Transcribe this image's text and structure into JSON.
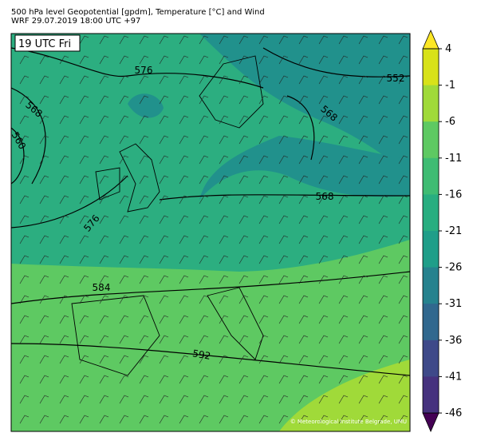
{
  "header": {
    "title": "500 hPa level Geopotential [gpdm], Temperature [°C] and Wind",
    "subtitle": "WRF 29.07.2019 18:00 UTC +97"
  },
  "map": {
    "time_label": "19 UTC Fri",
    "contour_labels": [
      "576",
      "552",
      "568",
      "560",
      "568",
      "568",
      "576",
      "584",
      "592"
    ],
    "copyright": "© Meteorological Institute Belgrade, UMU"
  },
  "colorbar": {
    "ticks": [
      4,
      -1,
      -6,
      -11,
      -16,
      -21,
      -26,
      -31,
      -36,
      -41,
      -46
    ],
    "colors": [
      "#d8e219",
      "#a0da39",
      "#5ec962",
      "#3fbc73",
      "#28ae80",
      "#1f9e89",
      "#26828e",
      "#31688e",
      "#3e4989",
      "#46327e"
    ],
    "over_color": "#fde725",
    "under_color": "#440154"
  }
}
